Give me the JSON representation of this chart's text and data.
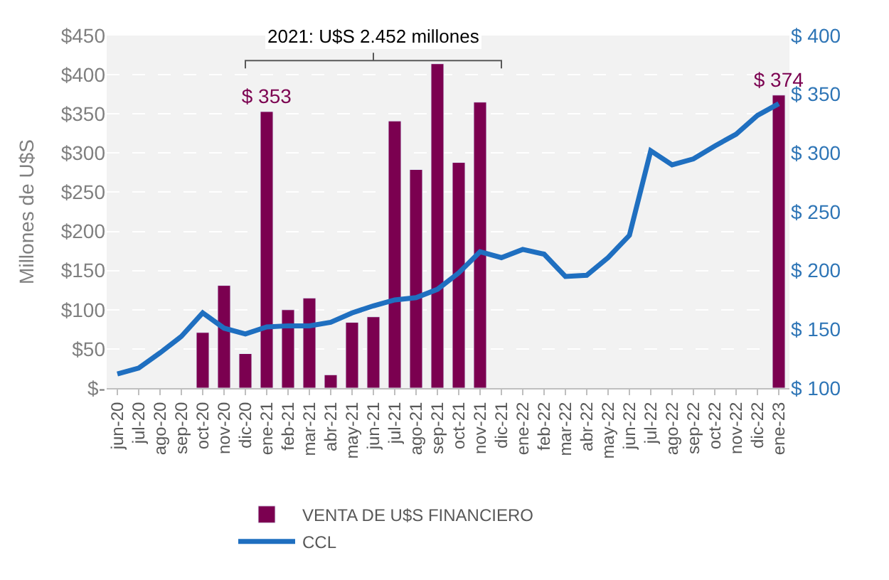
{
  "chart_data": {
    "type": "bar",
    "categories": [
      "jun-20",
      "jul-20",
      "ago-20",
      "sep-20",
      "oct-20",
      "nov-20",
      "dic-20",
      "ene-21",
      "feb-21",
      "mar-21",
      "abr-21",
      "may-21",
      "jun-21",
      "jul-21",
      "ago-21",
      "sep-21",
      "oct-21",
      "nov-21",
      "dic-21",
      "ene-22",
      "feb-22",
      "mar-22",
      "abr-22",
      "may-22",
      "jun-22",
      "jul-22",
      "ago-22",
      "sep-22",
      "oct-22",
      "nov-22",
      "dic-22",
      "ene-23"
    ],
    "series": [
      {
        "name": "VENTA DE U$S FINANCIERO",
        "color": "#7b0050",
        "values": [
          null,
          null,
          null,
          null,
          71,
          131,
          44,
          353,
          100,
          115,
          17,
          84,
          91,
          341,
          279,
          414,
          288,
          365,
          null,
          null,
          null,
          null,
          null,
          null,
          null,
          null,
          null,
          null,
          null,
          null,
          null,
          374
        ],
        "value_labels": [
          null,
          null,
          null,
          null,
          null,
          null,
          null,
          "$ 353",
          null,
          null,
          null,
          null,
          null,
          null,
          null,
          null,
          null,
          null,
          null,
          null,
          null,
          null,
          null,
          null,
          null,
          null,
          null,
          null,
          null,
          null,
          null,
          "$ 374"
        ]
      },
      {
        "name": "CCL",
        "type": "line",
        "axis": "y2",
        "color": "#1f6fc0",
        "values": [
          112,
          117,
          130,
          144,
          164,
          151,
          146,
          152,
          153,
          153,
          156,
          164,
          170,
          175,
          177,
          184,
          198,
          216,
          211,
          218,
          214,
          195,
          196,
          211,
          230,
          302,
          290,
          295,
          306,
          316,
          332,
          342
        ]
      }
    ],
    "ylabel": "Millones de U$S",
    "ylim": [
      0,
      450
    ],
    "yticks": [
      {
        "value": 0,
        "label": "$-"
      },
      {
        "value": 50,
        "label": "$50"
      },
      {
        "value": 100,
        "label": "$100"
      },
      {
        "value": 150,
        "label": "$150"
      },
      {
        "value": 200,
        "label": "$200"
      },
      {
        "value": 250,
        "label": "$250"
      },
      {
        "value": 300,
        "label": "$300"
      },
      {
        "value": 350,
        "label": "$350"
      },
      {
        "value": 400,
        "label": "$400"
      },
      {
        "value": 450,
        "label": "$450"
      }
    ],
    "y2lim": [
      100,
      400
    ],
    "y2ticks": [
      {
        "value": 100,
        "label": "$ 100"
      },
      {
        "value": 150,
        "label": "$ 150"
      },
      {
        "value": 200,
        "label": "$ 200"
      },
      {
        "value": 250,
        "label": "$ 250"
      },
      {
        "value": 300,
        "label": "$ 300"
      },
      {
        "value": 350,
        "label": "$ 350"
      },
      {
        "value": 400,
        "label": "$ 400"
      }
    ],
    "annotations": [
      "2021: U$S 2.452 millones"
    ],
    "grid": "y",
    "legend": "bottom",
    "marker": "none",
    "line_style": "solid"
  }
}
